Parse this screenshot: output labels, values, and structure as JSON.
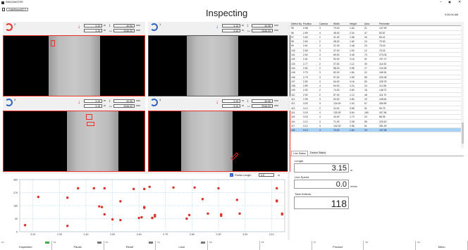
{
  "window": {
    "title": "SMACMASTER",
    "tab": "GriteRound32.3"
  },
  "header": {
    "title": "Inspecting",
    "time": "9:26:04 AM"
  },
  "cameras": [
    {
      "num": "2",
      "val1": "3.15",
      "val2": "3.15",
      "val3": "40.96",
      "val4": "2046.00",
      "unit": "m",
      "unit_mm": "mm"
    },
    {
      "num": "1",
      "val1": "3.15",
      "val2": "3.15",
      "val3": "40.96",
      "val4": "2046.00",
      "unit": "m",
      "unit_mm": "mm"
    },
    {
      "num": "3",
      "val1": "3.15",
      "val2": "3.15",
      "val3": "40.96",
      "val4": "2046.00",
      "unit": "m",
      "unit_mm": "mm"
    },
    {
      "num": "4",
      "val1": "3.15",
      "val2": "3.15",
      "val3": "40.96",
      "val4": "2046.00",
      "unit": "m",
      "unit_mm": "mm"
    }
  ],
  "plot_controls": {
    "partial_label": "Partial Length",
    "partial_value": "0.5",
    "partial_unit": "m"
  },
  "chart_data": {
    "type": "scatter",
    "xlim": [
      2.15,
      3.15
    ],
    "ylim": [
      0,
      360
    ],
    "xticks": [
      "2.20",
      "2.30",
      "2.40",
      "2.50",
      "2.60",
      "2.70",
      "2.80",
      "2.90",
      "3.00",
      "3.10"
    ],
    "yticks": [
      "360",
      "270",
      "180",
      "90",
      "0"
    ],
    "x": [
      2.17,
      2.33,
      2.33,
      2.37,
      2.43,
      2.45,
      2.46,
      2.47,
      2.5,
      2.53,
      2.53,
      2.58,
      2.6,
      2.61,
      2.62,
      2.62,
      2.62,
      2.64,
      2.65,
      2.66,
      2.66,
      2.73,
      2.78,
      2.79,
      2.81,
      2.84,
      2.86,
      2.9,
      2.91,
      2.91,
      2.97,
      2.98,
      3.12,
      3.12,
      3.12,
      3.14,
      3.14,
      2.22,
      2.47,
      2.65
    ],
    "y": [
      45,
      235,
      40,
      300,
      300,
      175,
      170,
      120,
      85,
      80,
      210,
      295,
      95,
      100,
      170,
      165,
      295,
      310,
      95,
      105,
      115,
      305,
      90,
      115,
      305,
      225,
      125,
      300,
      120,
      110,
      220,
      125,
      210,
      215,
      300,
      125,
      120,
      240,
      300,
      95
    ]
  },
  "table": {
    "headers": [
      "Defect No.",
      "Position",
      "Camera",
      "Width",
      "Height",
      "Area",
      "Perimeter"
    ],
    "rows": [
      [
        "95",
        "2.58",
        "3",
        "73.00",
        "1.64",
        "21",
        "147.99"
      ],
      [
        "96",
        "2.59",
        "4",
        "45.00",
        "2.04",
        "47",
        "83.87"
      ],
      [
        "97",
        "2.60",
        "2",
        "41.00",
        "1.68",
        "16",
        "83.41"
      ],
      [
        "98",
        "2.60",
        "2",
        "38.00",
        "1.60",
        "24",
        "79.00"
      ],
      [
        "99",
        "2.61",
        "2",
        "21.00",
        "2.48",
        "23",
        "70.16"
      ],
      [
        "100",
        "2.60",
        "3",
        "37.00",
        "1.52",
        "12",
        "75.43"
      ],
      [
        "101",
        "2.60",
        "3",
        "69.00",
        "3.48",
        "74",
        "273.04"
      ],
      [
        "102",
        "2.61",
        "3",
        "92.00",
        "3.16",
        "51",
        "197.27"
      ],
      [
        "103",
        "2.77",
        "2",
        "37.00",
        "1.12",
        "49",
        "114.93"
      ],
      [
        "104",
        "2.82",
        "2",
        "58.00",
        "0.96",
        "17",
        "120.36"
      ],
      [
        "105",
        "2.79",
        "3",
        "82.00",
        "1.84",
        "22",
        "165.92"
      ],
      [
        "106",
        "2.79",
        "3",
        "97.00",
        "2.55",
        "55",
        "202.08"
      ],
      [
        "107",
        "2.80",
        "3",
        "54.00",
        "3.16",
        "50",
        "205.78"
      ],
      [
        "108",
        "2.89",
        "4",
        "54.00",
        "2.24",
        "24",
        "111.58"
      ],
      [
        "109",
        "2.92",
        "2",
        "74.00",
        "0.60",
        "18",
        "148.72"
      ],
      [
        "110",
        "2.92",
        "2",
        "57.00",
        "1.12",
        "48",
        "114.79"
      ],
      [
        "111",
        "2.95",
        "3",
        "54.00",
        "0.80",
        "23",
        "108.64"
      ],
      [
        "112",
        "3.00",
        "3",
        "134.00",
        "1.04",
        "67",
        "269.95"
      ],
      [
        "113",
        "3.12",
        "2",
        "11.00",
        "0.68",
        "31",
        "59.79"
      ],
      [
        "114",
        "3.15",
        "4",
        "130.00",
        "0.64",
        "163",
        "407.96"
      ],
      [
        "115",
        "3.15",
        "4",
        "43.00",
        "1.72",
        "24",
        "88.35"
      ],
      [
        "116",
        "3.12",
        "3",
        "71.00",
        "2.08",
        "55",
        "225.40"
      ],
      [
        "117",
        "3.12",
        "3",
        "102.00",
        "2.56",
        "61",
        "281.39"
      ],
      [
        "118",
        "3.13",
        "3",
        "73.00",
        "1.60",
        "20",
        "147.38"
      ]
    ],
    "selected_index": 23
  },
  "tabs": [
    "Line Status",
    "Device Status"
  ],
  "status": {
    "length_label": "Length",
    "length_value": "3.15",
    "length_unit": "m",
    "speed_label": "Line Speed",
    "speed_value": "0.0",
    "speed_unit": "m/min",
    "defects_label": "Total Defects",
    "defects_value": "118"
  },
  "fkeys": [
    {
      "key": "F1",
      "label": "Inspection"
    },
    {
      "key": "F2",
      "label": "Pause"
    },
    {
      "key": "F3",
      "label": "Reset"
    },
    {
      "key": "F4",
      "label": "Lock"
    },
    {
      "key": "F5",
      "label": ""
    },
    {
      "key": "F6",
      "label": ""
    },
    {
      "key": "F7",
      "label": "Product"
    },
    {
      "key": "F8",
      "label": ""
    },
    {
      "key": "F9",
      "label": "Menu"
    }
  ],
  "colors": {
    "accent": "#e8312a",
    "blue": "#2f63c4",
    "select": "#a9d0f5"
  }
}
